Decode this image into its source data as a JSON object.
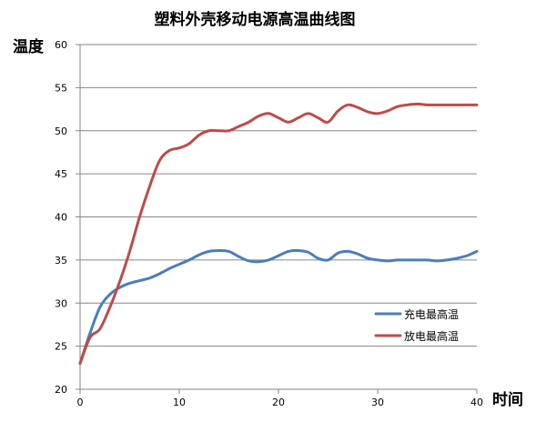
{
  "chart_data": {
    "type": "line",
    "title": "塑料外壳移动电源高温曲线图",
    "xlabel": "时间",
    "ylabel": "温度",
    "xlim": [
      0,
      40
    ],
    "ylim": [
      20,
      60
    ],
    "x_ticks": [
      0,
      10,
      20,
      30,
      40
    ],
    "y_ticks": [
      20,
      25,
      30,
      35,
      40,
      45,
      50,
      55,
      60
    ],
    "grid": "horizontal",
    "legend_position": "right",
    "series": [
      {
        "name": "充电最高温",
        "color": "#4a7ebb",
        "x": [
          0,
          1,
          2,
          3,
          4,
          5,
          6,
          7,
          8,
          9,
          10,
          11,
          12,
          13,
          14,
          15,
          16,
          17,
          18,
          19,
          20,
          21,
          22,
          23,
          24,
          25,
          26,
          27,
          28,
          29,
          30,
          31,
          32,
          33,
          34,
          35,
          36,
          37,
          38,
          39,
          40
        ],
        "y": [
          23,
          26.5,
          29.5,
          31,
          31.8,
          32.3,
          32.6,
          32.9,
          33.4,
          34,
          34.5,
          35,
          35.6,
          36,
          36.1,
          36,
          35.4,
          34.9,
          34.8,
          35,
          35.5,
          36,
          36.1,
          35.9,
          35.2,
          35,
          35.8,
          36,
          35.7,
          35.2,
          35,
          34.9,
          35,
          35,
          35,
          35,
          34.9,
          35,
          35.2,
          35.5,
          36
        ]
      },
      {
        "name": "放电最高温",
        "color": "#be4b48",
        "x": [
          0,
          1,
          2,
          3,
          4,
          5,
          6,
          7,
          8,
          9,
          10,
          11,
          12,
          13,
          14,
          15,
          16,
          17,
          18,
          19,
          20,
          21,
          22,
          23,
          24,
          25,
          26,
          27,
          28,
          29,
          30,
          31,
          32,
          33,
          34,
          35,
          36,
          37,
          38,
          39,
          40
        ],
        "y": [
          23,
          26,
          27,
          29.5,
          32.5,
          36,
          40,
          43.5,
          46.5,
          47.7,
          48,
          48.5,
          49.5,
          50,
          50,
          50,
          50.5,
          51,
          51.7,
          52,
          51.5,
          51,
          51.5,
          52,
          51.5,
          51,
          52.3,
          53,
          52.7,
          52.2,
          52,
          52.3,
          52.8,
          53,
          53.1,
          53,
          53,
          53,
          53,
          53,
          53
        ]
      }
    ]
  }
}
